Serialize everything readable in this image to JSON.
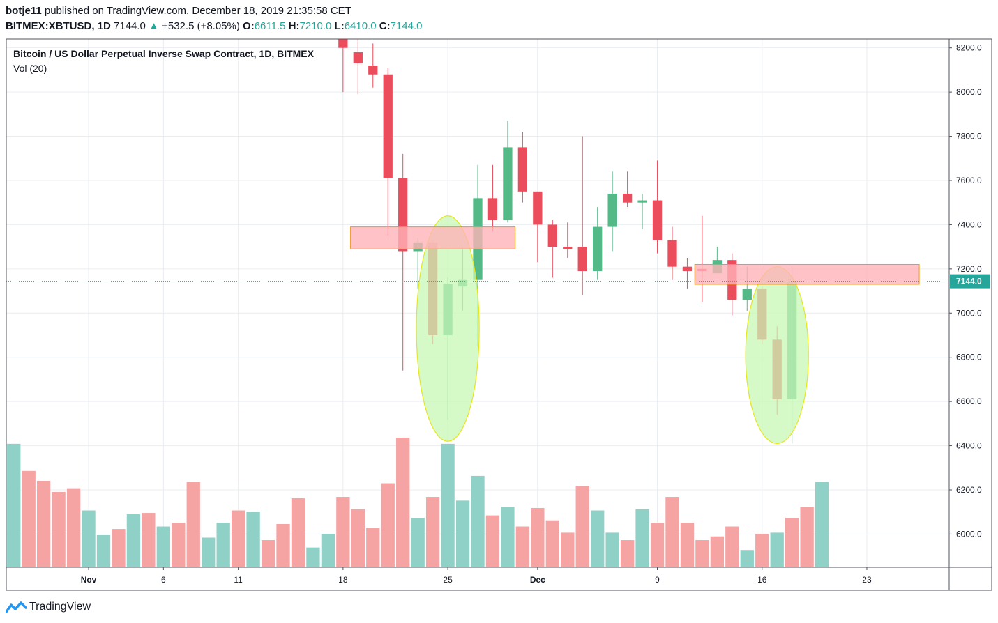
{
  "header": {
    "author": "botje11",
    "published_text": "published on TradingView.com, December 18, 2019 21:35:58 CET",
    "symbol_interval": "BITMEX:XBTUSD, 1D",
    "last": "7144.0",
    "change": "+532.5 (+8.05%)",
    "o_label": "O:",
    "o_value": "6611.5",
    "h_label": "H:",
    "h_value": "7210.0",
    "l_label": "L:",
    "l_value": "6410.0",
    "c_label": "C:",
    "c_value": "7144.0"
  },
  "footer": {
    "brand": "TradingView"
  },
  "chart_data": {
    "type": "candlestick",
    "legend": {
      "title": "Bitcoin / US Dollar Perpetual Inverse Swap Contract, 1D, BITMEX",
      "volume": "Vol (20)"
    },
    "price_label": "7144.0",
    "last_price": 7144.0,
    "ylim": [
      5850,
      8240
    ],
    "y_ticks": [
      6000,
      6200,
      6400,
      6600,
      6800,
      7000,
      7200,
      7400,
      7600,
      7800,
      8000,
      8200
    ],
    "y_tick_labels": [
      "6000.0",
      "6200.0",
      "6400.0",
      "6600.0",
      "6800.0",
      "7000.0",
      "7200.0",
      "7400.0",
      "7600.0",
      "7800.0",
      "8000.0",
      "8200.0"
    ],
    "x_ticks": [
      {
        "label": "Nov",
        "date": "2019-11-01",
        "bold": true
      },
      {
        "label": "6",
        "date": "2019-11-06",
        "bold": false
      },
      {
        "label": "11",
        "date": "2019-11-11",
        "bold": false
      },
      {
        "label": "18",
        "date": "2019-11-18",
        "bold": false
      },
      {
        "label": "25",
        "date": "2019-11-25",
        "bold": false
      },
      {
        "label": "Dec",
        "date": "2019-12-01",
        "bold": true
      },
      {
        "label": "9",
        "date": "2019-12-09",
        "bold": false
      },
      {
        "label": "16",
        "date": "2019-12-16",
        "bold": false
      },
      {
        "label": "23",
        "date": "2019-12-23",
        "bold": false
      }
    ],
    "x_range": [
      "2019-10-27",
      "2019-12-29"
    ],
    "volume_series": {
      "start_date": "2019-10-27",
      "values": [
        1.0,
        0.78,
        0.7,
        0.61,
        0.64,
        0.46,
        0.26,
        0.31,
        0.43,
        0.44,
        0.33,
        0.36,
        0.69,
        0.24,
        0.36,
        0.46,
        0.45,
        0.22,
        0.35,
        0.56,
        0.16,
        0.27,
        0.57,
        0.47,
        0.32,
        0.68,
        1.05,
        0.4,
        0.57,
        1.0,
        0.54,
        0.74,
        0.42,
        0.49,
        0.33,
        0.48,
        0.38,
        0.28,
        0.66,
        0.46,
        0.28,
        0.22,
        0.47,
        0.36,
        0.57,
        0.36,
        0.22,
        0.25,
        0.33,
        0.14,
        0.27,
        0.28,
        0.4,
        0.49,
        0.69
      ],
      "up": [
        true,
        false,
        false,
        false,
        false,
        true,
        true,
        false,
        true,
        false,
        true,
        false,
        false,
        true,
        true,
        false,
        true,
        false,
        false,
        false,
        true,
        true,
        false,
        false,
        false,
        false,
        false,
        true,
        false,
        true,
        true,
        true,
        false,
        true,
        false,
        false,
        false,
        false,
        false,
        true,
        true,
        false,
        true,
        false,
        false,
        false,
        false,
        false,
        false,
        true,
        false,
        true,
        false,
        false,
        true
      ]
    },
    "candles": [
      {
        "date": "2019-11-18",
        "o": 8290,
        "h": 8420,
        "l": 8000,
        "c": 8200
      },
      {
        "date": "2019-11-19",
        "o": 8180,
        "h": 8250,
        "l": 7990,
        "c": 8130
      },
      {
        "date": "2019-11-20",
        "o": 8120,
        "h": 8220,
        "l": 8020,
        "c": 8080
      },
      {
        "date": "2019-11-21",
        "o": 8080,
        "h": 8110,
        "l": 7350,
        "c": 7610
      },
      {
        "date": "2019-11-22",
        "o": 7610,
        "h": 7720,
        "l": 6740,
        "c": 7280
      },
      {
        "date": "2019-11-23",
        "o": 7280,
        "h": 7340,
        "l": 7110,
        "c": 7320
      },
      {
        "date": "2019-11-24",
        "o": 7320,
        "h": 7330,
        "l": 6860,
        "c": 6900
      },
      {
        "date": "2019-11-25",
        "o": 6900,
        "h": 7160,
        "l": 6520,
        "c": 7130
      },
      {
        "date": "2019-11-26",
        "o": 7120,
        "h": 7300,
        "l": 7010,
        "c": 7150
      },
      {
        "date": "2019-11-27",
        "o": 7150,
        "h": 7670,
        "l": 6850,
        "c": 7520
      },
      {
        "date": "2019-11-28",
        "o": 7520,
        "h": 7670,
        "l": 7370,
        "c": 7420
      },
      {
        "date": "2019-11-29",
        "o": 7420,
        "h": 7870,
        "l": 7410,
        "c": 7750
      },
      {
        "date": "2019-11-30",
        "o": 7750,
        "h": 7820,
        "l": 7500,
        "c": 7550
      },
      {
        "date": "2019-12-01",
        "o": 7550,
        "h": 7550,
        "l": 7230,
        "c": 7400
      },
      {
        "date": "2019-12-02",
        "o": 7400,
        "h": 7420,
        "l": 7160,
        "c": 7300
      },
      {
        "date": "2019-12-03",
        "o": 7300,
        "h": 7410,
        "l": 7250,
        "c": 7290
      },
      {
        "date": "2019-12-04",
        "o": 7300,
        "h": 7800,
        "l": 7080,
        "c": 7190
      },
      {
        "date": "2019-12-05",
        "o": 7190,
        "h": 7480,
        "l": 7150,
        "c": 7390
      },
      {
        "date": "2019-12-06",
        "o": 7390,
        "h": 7640,
        "l": 7280,
        "c": 7540
      },
      {
        "date": "2019-12-07",
        "o": 7540,
        "h": 7640,
        "l": 7480,
        "c": 7500
      },
      {
        "date": "2019-12-08",
        "o": 7500,
        "h": 7540,
        "l": 7380,
        "c": 7510
      },
      {
        "date": "2019-12-09",
        "o": 7510,
        "h": 7690,
        "l": 7270,
        "c": 7330
      },
      {
        "date": "2019-12-10",
        "o": 7330,
        "h": 7390,
        "l": 7150,
        "c": 7210
      },
      {
        "date": "2019-12-11",
        "o": 7210,
        "h": 7250,
        "l": 7110,
        "c": 7190
      },
      {
        "date": "2019-12-12",
        "o": 7200,
        "h": 7440,
        "l": 7050,
        "c": 7190
      },
      {
        "date": "2019-12-13",
        "o": 7180,
        "h": 7300,
        "l": 7180,
        "c": 7240
      },
      {
        "date": "2019-12-14",
        "o": 7240,
        "h": 7270,
        "l": 6990,
        "c": 7060
      },
      {
        "date": "2019-12-15",
        "o": 7060,
        "h": 7210,
        "l": 7010,
        "c": 7110
      },
      {
        "date": "2019-12-16",
        "o": 7110,
        "h": 7120,
        "l": 6860,
        "c": 6880
      },
      {
        "date": "2019-12-17",
        "o": 6880,
        "h": 6940,
        "l": 6540,
        "c": 6610
      },
      {
        "date": "2019-12-18",
        "o": 6610,
        "h": 7210,
        "l": 6410,
        "c": 7144
      }
    ],
    "zones": [
      {
        "from": "2019-11-19",
        "to": "2019-11-29",
        "low": 7290,
        "high": 7390
      },
      {
        "from": "2019-12-12",
        "to": "2019-12-26",
        "low": 7130,
        "high": 7220
      }
    ],
    "ellipses": [
      {
        "center_date": "2019-11-25",
        "half_width_days": 2.1,
        "low": 6420,
        "high": 7440
      },
      {
        "center_date": "2019-12-17",
        "half_width_days": 2.1,
        "low": 6410,
        "high": 7210
      }
    ],
    "colors": {
      "up": "#53b987",
      "down": "#eb4d5c",
      "vol_up": "#8fd0c7",
      "vol_down": "#f5a3a3",
      "zone_fill": "#ffb3b8",
      "zone_stroke": "#f7941d",
      "ellipse_fill": "#c8f7b5",
      "ellipse_stroke": "#e7e619",
      "grid": "#e9edf2",
      "last_line": "#26a69a"
    }
  }
}
